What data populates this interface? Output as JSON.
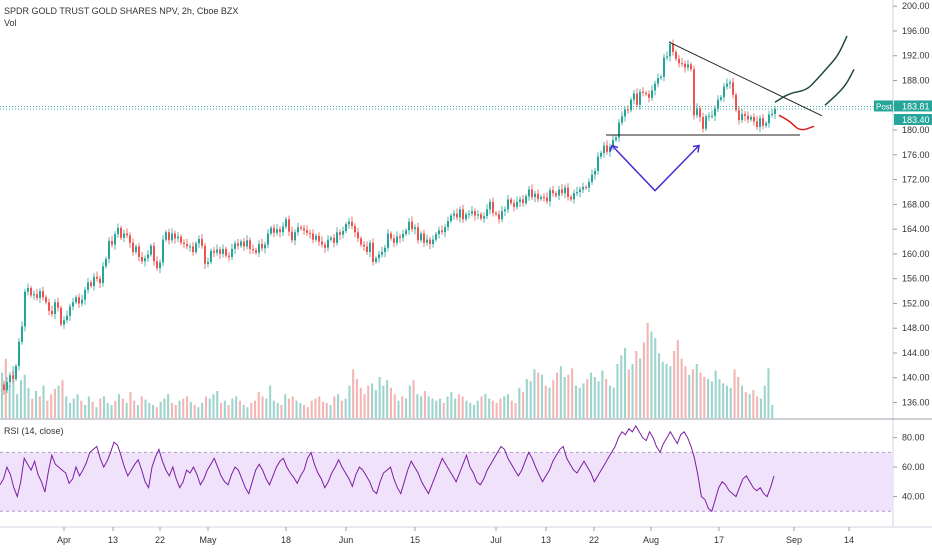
{
  "chart_data": {
    "type": "candlestick",
    "title": "SPDR GOLD TRUST GOLD SHARES NPV, 2h, Cboe BZX",
    "volume_label": "Vol",
    "price_axis": {
      "ticks": [
        "200.00",
        "196.00",
        "192.00",
        "188.00",
        "184.00",
        "180.00",
        "176.00",
        "172.00",
        "168.00",
        "164.00",
        "160.00",
        "156.00",
        "152.00",
        "148.00",
        "144.00",
        "140.00",
        "136.00"
      ],
      "ylim": [
        133.5,
        201
      ]
    },
    "x_axis": {
      "ticks": [
        "Apr",
        "13",
        "22",
        "May",
        "18",
        "Jun",
        "15",
        "Jul",
        "13",
        "22",
        "Aug",
        "17",
        "Sep",
        "14"
      ]
    },
    "price_labels": {
      "post_label": "Post",
      "post_value": "183.81",
      "last_value": "183.40",
      "post_price": 183.81,
      "last_price": 183.4
    },
    "price_path": [
      [
        0,
        138.9
      ],
      [
        3,
        138
      ],
      [
        6,
        139.3
      ],
      [
        9,
        140.4
      ],
      [
        12,
        139.8
      ],
      [
        15,
        141.9
      ],
      [
        18,
        145.8
      ],
      [
        21,
        148.3
      ],
      [
        24,
        153.9
      ],
      [
        27,
        154.5
      ],
      [
        30,
        153.3
      ],
      [
        33,
        153.5
      ],
      [
        36,
        152.9
      ],
      [
        39,
        154
      ],
      [
        42,
        153
      ],
      [
        45,
        152.2
      ],
      [
        48,
        150.8
      ],
      [
        51,
        150.3
      ],
      [
        54,
        152.2
      ],
      [
        57,
        151.3
      ],
      [
        60,
        148.6
      ],
      [
        63,
        149.3
      ],
      [
        66,
        150
      ],
      [
        69,
        151.5
      ],
      [
        72,
        152.2
      ],
      [
        75,
        153
      ],
      [
        78,
        152
      ],
      [
        81,
        152.6
      ],
      [
        84,
        154.2
      ],
      [
        87,
        155.4
      ],
      [
        90,
        154.8
      ],
      [
        93,
        156.3
      ],
      [
        96,
        156
      ],
      [
        99,
        155.3
      ],
      [
        102,
        158
      ],
      [
        105,
        159.2
      ],
      [
        108,
        162.1
      ],
      [
        111,
        161.5
      ],
      [
        114,
        163.2
      ],
      [
        117,
        164.2
      ],
      [
        120,
        162.6
      ],
      [
        123,
        163.3
      ],
      [
        126,
        163
      ],
      [
        129,
        161.8
      ],
      [
        132,
        160.3
      ],
      [
        135,
        161.2
      ],
      [
        138,
        159.5
      ],
      [
        141,
        158.8
      ],
      [
        144,
        159.3
      ],
      [
        147,
        159.9
      ],
      [
        150,
        161.3
      ],
      [
        153,
        158.8
      ],
      [
        156,
        157.7
      ],
      [
        159,
        158.6
      ],
      [
        162,
        162.3
      ],
      [
        165,
        163.5
      ],
      [
        168,
        162.2
      ],
      [
        171,
        163.3
      ],
      [
        174,
        162.5
      ],
      [
        177,
        162.8
      ],
      [
        180,
        161.8
      ],
      [
        183,
        161.6
      ],
      [
        186,
        161.2
      ],
      [
        189,
        161.2
      ],
      [
        192,
        160.3
      ],
      [
        195,
        161.7
      ],
      [
        198,
        162.4
      ],
      [
        201,
        161.3
      ],
      [
        204,
        158.4
      ],
      [
        207,
        158.7
      ],
      [
        210,
        160.5
      ],
      [
        213,
        160.2
      ],
      [
        216,
        160.7
      ],
      [
        219,
        160
      ],
      [
        222,
        160.8
      ],
      [
        225,
        159.7
      ],
      [
        228,
        159.5
      ],
      [
        231,
        160.8
      ],
      [
        234,
        161.7
      ],
      [
        237,
        161.3
      ],
      [
        240,
        162
      ],
      [
        243,
        161.2
      ],
      [
        246,
        162.2
      ],
      [
        249,
        160.8
      ],
      [
        252,
        160.6
      ],
      [
        255,
        160.2
      ],
      [
        258,
        161.6
      ],
      [
        261,
        160.9
      ],
      [
        264,
        161.5
      ],
      [
        267,
        163.3
      ],
      [
        270,
        164.2
      ],
      [
        273,
        163.4
      ],
      [
        276,
        164
      ],
      [
        279,
        163.5
      ],
      [
        282,
        164.4
      ],
      [
        285,
        165.6
      ],
      [
        288,
        163.6
      ],
      [
        291,
        162.2
      ],
      [
        294,
        163.5
      ],
      [
        297,
        164.3
      ],
      [
        300,
        164.1
      ],
      [
        303,
        163.8
      ],
      [
        306,
        163.4
      ],
      [
        309,
        163.3
      ],
      [
        312,
        162.3
      ],
      [
        315,
        162.9
      ],
      [
        318,
        162
      ],
      [
        321,
        161.5
      ],
      [
        324,
        161
      ],
      [
        327,
        162.3
      ],
      [
        330,
        162.6
      ],
      [
        333,
        161.8
      ],
      [
        336,
        163.5
      ],
      [
        339,
        163.1
      ],
      [
        342,
        163.7
      ],
      [
        345,
        164.8
      ],
      [
        348,
        165.2
      ],
      [
        351,
        164.5
      ],
      [
        354,
        163.5
      ],
      [
        357,
        162.5
      ],
      [
        360,
        161.5
      ],
      [
        363,
        161.2
      ],
      [
        366,
        160.3
      ],
      [
        369,
        161.8
      ],
      [
        372,
        158.7
      ],
      [
        375,
        159.3
      ],
      [
        378,
        159.9
      ],
      [
        381,
        160.3
      ],
      [
        384,
        161
      ],
      [
        387,
        163.3
      ],
      [
        390,
        162.5
      ],
      [
        393,
        161.8
      ],
      [
        396,
        162.8
      ],
      [
        399,
        162.6
      ],
      [
        402,
        163.2
      ],
      [
        405,
        163.8
      ],
      [
        408,
        165.2
      ],
      [
        411,
        164
      ],
      [
        414,
        164.3
      ],
      [
        417,
        162.2
      ],
      [
        420,
        163.3
      ],
      [
        423,
        161.8
      ],
      [
        426,
        162.3
      ],
      [
        429,
        161.6
      ],
      [
        432,
        162.3
      ],
      [
        435,
        163.2
      ],
      [
        438,
        163.8
      ],
      [
        441,
        163.5
      ],
      [
        444,
        164.3
      ],
      [
        447,
        165.3
      ],
      [
        450,
        166.2
      ],
      [
        453,
        166.5
      ],
      [
        456,
        165.9
      ],
      [
        459,
        167.2
      ],
      [
        462,
        165.6
      ],
      [
        465,
        166.4
      ],
      [
        468,
        166.5
      ],
      [
        471,
        166.9
      ],
      [
        474,
        166.2
      ],
      [
        477,
        166.4
      ],
      [
        480,
        165.7
      ],
      [
        483,
        166.1
      ],
      [
        486,
        167.2
      ],
      [
        489,
        168.4
      ],
      [
        492,
        166.6
      ],
      [
        495,
        166.4
      ],
      [
        498,
        165.6
      ],
      [
        501,
        166.9
      ],
      [
        504,
        167.2
      ],
      [
        507,
        168.8
      ],
      [
        510,
        168.2
      ],
      [
        513,
        167.6
      ],
      [
        516,
        168.4
      ],
      [
        519,
        168.8
      ],
      [
        522,
        168.2
      ],
      [
        525,
        169.3
      ],
      [
        528,
        170.4
      ],
      [
        531,
        169.2
      ],
      [
        534,
        169.7
      ],
      [
        537,
        168.9
      ],
      [
        540,
        169.2
      ],
      [
        543,
        169.1
      ],
      [
        546,
        168.5
      ],
      [
        549,
        170.3
      ],
      [
        552,
        169.8
      ],
      [
        555,
        169.4
      ],
      [
        558,
        170.4
      ],
      [
        561,
        169.8
      ],
      [
        564,
        170.7
      ],
      [
        567,
        169.2
      ],
      [
        570,
        168.8
      ],
      [
        573,
        169.8
      ],
      [
        576,
        170
      ],
      [
        579,
        170.4
      ],
      [
        582,
        170.8
      ],
      [
        585,
        170.7
      ],
      [
        588,
        171.6
      ],
      [
        591,
        172.8
      ],
      [
        594,
        173.4
      ],
      [
        597,
        175.7
      ],
      [
        600,
        176.3
      ],
      [
        603,
        177.5
      ],
      [
        606,
        176.5
      ],
      [
        609,
        177.3
      ],
      [
        612,
        178.4
      ],
      [
        615,
        178.8
      ],
      [
        618,
        181.2
      ],
      [
        621,
        182.2
      ],
      [
        624,
        183.3
      ],
      [
        627,
        183.2
      ],
      [
        630,
        184.9
      ],
      [
        633,
        185.9
      ],
      [
        636,
        184.1
      ],
      [
        639,
        186.2
      ],
      [
        642,
        186
      ],
      [
        645,
        185.8
      ],
      [
        648,
        185.2
      ],
      [
        651,
        186.4
      ],
      [
        654,
        187.5
      ],
      [
        657,
        188.4
      ],
      [
        660,
        188.6
      ],
      [
        663,
        191.7
      ],
      [
        666,
        191.9
      ],
      [
        669,
        193.9
      ],
      [
        672,
        192.6
      ],
      [
        675,
        191.5
      ],
      [
        678,
        190.8
      ],
      [
        681,
        190.7
      ],
      [
        684,
        190.1
      ],
      [
        687,
        190.6
      ],
      [
        690,
        189.8
      ],
      [
        693,
        182.4
      ],
      [
        696,
        183.5
      ],
      [
        699,
        182.1
      ],
      [
        702,
        180.2
      ],
      [
        705,
        182.2
      ],
      [
        708,
        182.3
      ],
      [
        711,
        182.3
      ],
      [
        714,
        183.5
      ],
      [
        717,
        184.9
      ],
      [
        720,
        185.3
      ],
      [
        723,
        187
      ],
      [
        726,
        187.5
      ],
      [
        729,
        187.7
      ],
      [
        732,
        185.7
      ],
      [
        735,
        183.2
      ],
      [
        738,
        181.6
      ],
      [
        741,
        182.6
      ],
      [
        744,
        182.3
      ],
      [
        747,
        181.7
      ],
      [
        750,
        182.1
      ],
      [
        753,
        181.4
      ],
      [
        756,
        180.5
      ],
      [
        759,
        181.9
      ],
      [
        762,
        180.7
      ],
      [
        765,
        181.1
      ],
      [
        768,
        182.5
      ],
      [
        771,
        182.6
      ],
      [
        774,
        183.4
      ]
    ],
    "volume": {
      "ylim": [
        0,
        1
      ],
      "bars": [
        0.42,
        0.55,
        0.3,
        0.48,
        0.22,
        0.35,
        0.4,
        0.28,
        0.18,
        0.25,
        0.2,
        0.3,
        0.16,
        0.22,
        0.27,
        0.3,
        0.35,
        0.2,
        0.14,
        0.18,
        0.22,
        0.16,
        0.12,
        0.2,
        0.15,
        0.1,
        0.18,
        0.2,
        0.14,
        0.12,
        0.16,
        0.22,
        0.18,
        0.14,
        0.24,
        0.16,
        0.12,
        0.2,
        0.17,
        0.14,
        0.12,
        0.1,
        0.15,
        0.18,
        0.22,
        0.14,
        0.12,
        0.16,
        0.18,
        0.2,
        0.15,
        0.12,
        0.1,
        0.14,
        0.2,
        0.18,
        0.22,
        0.25,
        0.14,
        0.16,
        0.12,
        0.18,
        0.2,
        0.16,
        0.12,
        0.1,
        0.14,
        0.16,
        0.24,
        0.2,
        0.18,
        0.3,
        0.16,
        0.14,
        0.12,
        0.22,
        0.18,
        0.2,
        0.16,
        0.14,
        0.12,
        0.1,
        0.16,
        0.18,
        0.2,
        0.15,
        0.14,
        0.12,
        0.2,
        0.22,
        0.16,
        0.18,
        0.3,
        0.45,
        0.36,
        0.28,
        0.22,
        0.3,
        0.32,
        0.26,
        0.38,
        0.3,
        0.35,
        0.28,
        0.22,
        0.16,
        0.2,
        0.18,
        0.3,
        0.35,
        0.22,
        0.2,
        0.25,
        0.2,
        0.18,
        0.16,
        0.18,
        0.14,
        0.2,
        0.24,
        0.18,
        0.22,
        0.2,
        0.16,
        0.14,
        0.12,
        0.16,
        0.2,
        0.22,
        0.18,
        0.16,
        0.14,
        0.18,
        0.2,
        0.22,
        0.16,
        0.14,
        0.28,
        0.24,
        0.36,
        0.34,
        0.45,
        0.42,
        0.4,
        0.3,
        0.28,
        0.35,
        0.42,
        0.48,
        0.38,
        0.4,
        0.46,
        0.3,
        0.28,
        0.32,
        0.36,
        0.42,
        0.38,
        0.34,
        0.44,
        0.36,
        0.3,
        0.28,
        0.5,
        0.58,
        0.65,
        0.45,
        0.5,
        0.62,
        0.55,
        0.7,
        0.88,
        0.8,
        0.74,
        0.6,
        0.52,
        0.5,
        0.48,
        0.62,
        0.72,
        0.55,
        0.48,
        0.4,
        0.45,
        0.5,
        0.42,
        0.38,
        0.36,
        0.34,
        0.44,
        0.36,
        0.32,
        0.3,
        0.28,
        0.45,
        0.38,
        0.3,
        0.24,
        0.22,
        0.26,
        0.2,
        0.18,
        0.3,
        0.46,
        0.12
      ]
    },
    "rsi": {
      "label": "RSI (14, close)",
      "ticks": [
        "80.00",
        "60.00",
        "40.00"
      ],
      "ylim": [
        20,
        92
      ],
      "band": [
        30,
        70
      ],
      "series": [
        48,
        52,
        60,
        55,
        46,
        40,
        50,
        66,
        62,
        58,
        64,
        55,
        50,
        43,
        57,
        68,
        62,
        60,
        58,
        56,
        49,
        52,
        60,
        54,
        58,
        63,
        70,
        72,
        74,
        66,
        60,
        64,
        70,
        77,
        75,
        68,
        60,
        54,
        58,
        62,
        65,
        58,
        50,
        46,
        60,
        67,
        72,
        64,
        58,
        54,
        60,
        52,
        46,
        50,
        58,
        56,
        60,
        55,
        48,
        52,
        58,
        62,
        66,
        60,
        54,
        50,
        48,
        55,
        60,
        58,
        52,
        46,
        42,
        50,
        58,
        62,
        58,
        52,
        48,
        54,
        60,
        64,
        66,
        60,
        56,
        53,
        49,
        54,
        58,
        66,
        70,
        62,
        56,
        52,
        46,
        50,
        56,
        60,
        65,
        60,
        56,
        52,
        47,
        55,
        60,
        58,
        54,
        50,
        44,
        42,
        50,
        56,
        58,
        60,
        52,
        46,
        42,
        50,
        58,
        64,
        60,
        56,
        50,
        46,
        42,
        48,
        54,
        60,
        66,
        62,
        58,
        54,
        50,
        56,
        62,
        68,
        60,
        56,
        50,
        48,
        52,
        58,
        62,
        66,
        70,
        74,
        72,
        66,
        62,
        58,
        54,
        58,
        64,
        70,
        66,
        60,
        55,
        50,
        54,
        58,
        64,
        68,
        72,
        74,
        66,
        62,
        58,
        56,
        60,
        64,
        60,
        56,
        50,
        54,
        58,
        62,
        66,
        70,
        74,
        80,
        84,
        82,
        86,
        84,
        88,
        84,
        80,
        78,
        84,
        80,
        74,
        70,
        76,
        80,
        84,
        80,
        76,
        82,
        84,
        80,
        74,
        66,
        54,
        40,
        38,
        32,
        30,
        38,
        46,
        50,
        48,
        44,
        42,
        40,
        46,
        52,
        54,
        50,
        46,
        44,
        46,
        42,
        40,
        46,
        54
      ]
    },
    "drawings": {
      "trend_points": [
        [
          669,
          194.2
        ],
        [
          822,
          182.3
        ]
      ],
      "support_points": [
        [
          606,
          179.2
        ],
        [
          800,
          179.2
        ]
      ],
      "v_points": [
        [
          612,
          177.5
        ],
        [
          655,
          170.2
        ],
        [
          699,
          177.5
        ]
      ],
      "red_path": [
        [
          779,
          182.4
        ],
        [
          790,
          181.4
        ],
        [
          800,
          179.8
        ],
        [
          814,
          180.6
        ]
      ],
      "green_path_upper": [
        [
          775,
          184.5
        ],
        [
          790,
          186
        ],
        [
          806,
          186.4
        ],
        [
          816,
          188
        ],
        [
          827,
          190
        ],
        [
          838,
          192
        ],
        [
          847,
          195.2
        ]
      ],
      "green_path_lower": [
        [
          825,
          184
        ],
        [
          836,
          185.6
        ],
        [
          846,
          187.3
        ],
        [
          854,
          189.8
        ]
      ]
    }
  }
}
